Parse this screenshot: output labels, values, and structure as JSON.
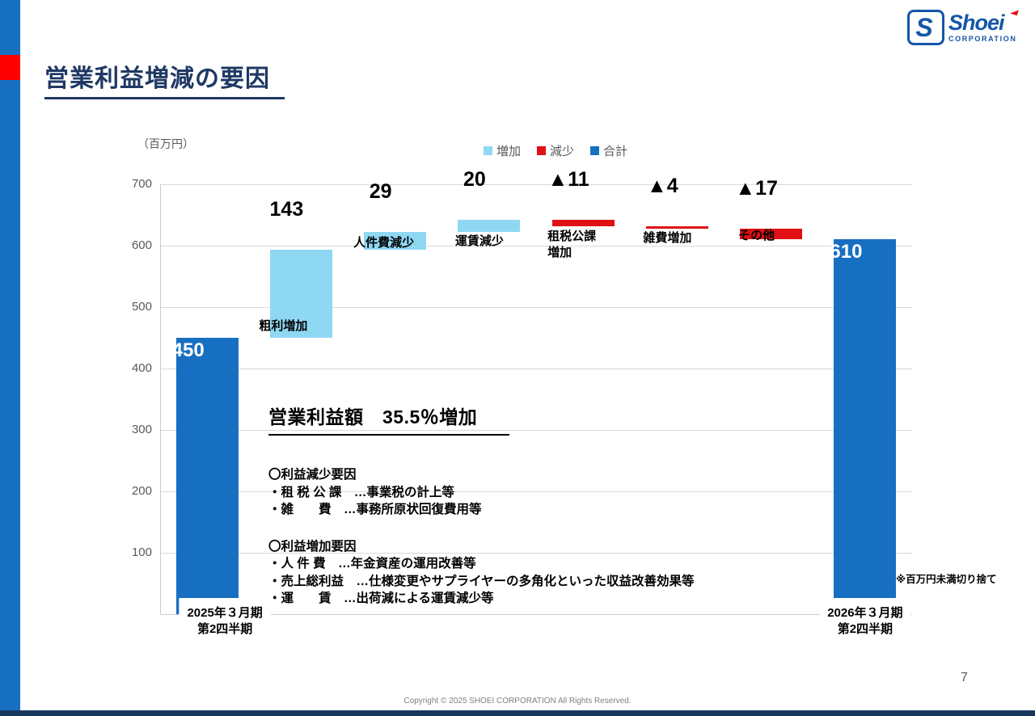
{
  "page": {
    "title": "営業利益増減の要因",
    "unit_label": "（百万円）",
    "note": "※百万円未満切り捨て",
    "page_number": "7",
    "footer": "Copyright © 2025 SHOEI CORPORATION All Rights Reserved."
  },
  "logo": {
    "icon": "S",
    "name": "Shoei",
    "subtext": "CORPORATION"
  },
  "colors": {
    "increase": "#8FD8F3",
    "decrease": "#E01015",
    "total": "#176FC1",
    "title_navy": "#1F3864",
    "gridline": "#D9D9D9"
  },
  "legend": [
    {
      "label": "増加",
      "color": "#8FD8F3"
    },
    {
      "label": "減少",
      "color": "#E01015"
    },
    {
      "label": "合計",
      "color": "#176FC1"
    }
  ],
  "chart_data": {
    "type": "bar",
    "subtype": "waterfall",
    "unit": "百万円",
    "ylim": [
      0,
      700
    ],
    "yticks": [
      700,
      600,
      500,
      400,
      300,
      200,
      100
    ],
    "grid": true,
    "legend_position": "top-center",
    "columns": [
      {
        "category": "2025年３月期\n第2四半期",
        "kind": "total",
        "value": 450,
        "label": "450",
        "start": 0,
        "end": 450
      },
      {
        "category": "粗利増加",
        "kind": "increase",
        "value": 143,
        "label": "143",
        "start": 450,
        "end": 593
      },
      {
        "category": "人件費減少",
        "kind": "increase",
        "value": 29,
        "label": "29",
        "start": 593,
        "end": 622
      },
      {
        "category": "運賃減少",
        "kind": "increase",
        "value": 20,
        "label": "20",
        "start": 622,
        "end": 642
      },
      {
        "category": "租税公課\n増加",
        "kind": "decrease",
        "value": -11,
        "label": "▲11",
        "start": 642,
        "end": 631
      },
      {
        "category": "雑費増加",
        "kind": "decrease",
        "value": -4,
        "label": "▲4",
        "start": 631,
        "end": 627
      },
      {
        "category": "その他",
        "kind": "decrease",
        "value": -17,
        "label": "▲17",
        "start": 627,
        "end": 610
      },
      {
        "category": "2026年３月期\n第2四半期",
        "kind": "total",
        "value": 610,
        "label": "610",
        "start": 0,
        "end": 610
      }
    ]
  },
  "commentary": {
    "heading": "営業利益額　35.5％増加",
    "sections": [
      {
        "title": "〇利益減少要因",
        "items": [
          "・租 税 公 課　…事業税の計上等",
          "・雑　　費　…事務所原状回復費用等"
        ]
      },
      {
        "title": "〇利益増加要因",
        "items": [
          "・人 件 費　…年金資産の運用改善等",
          "・売上総利益　…仕様変更やサプライヤーの多角化といった収益改善効果等",
          "・運　　賃　…出荷減による運賃減少等"
        ]
      }
    ]
  }
}
